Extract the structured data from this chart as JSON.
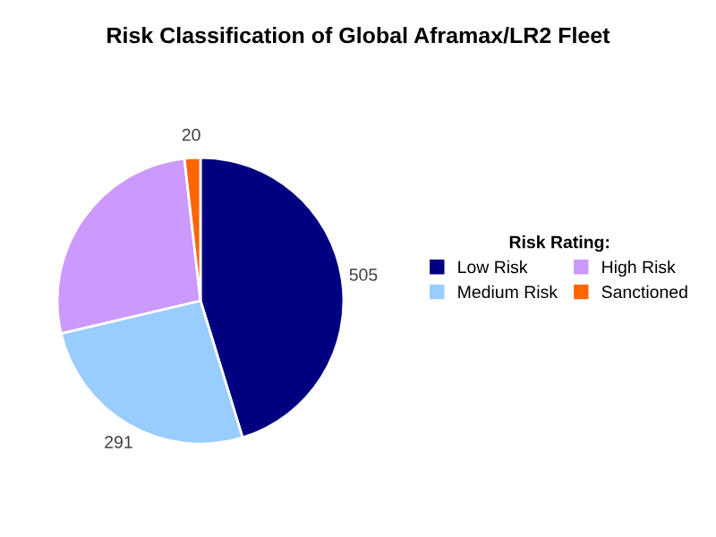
{
  "chart_data": {
    "type": "pie",
    "title": "Risk Classification of Global Aframax/LR2 Fleet",
    "legend_title": "Risk Rating:",
    "categories": [
      "Low Risk",
      "Medium Risk",
      "High Risk",
      "Sanctioned"
    ],
    "values": [
      505,
      291,
      300,
      20
    ],
    "value_labels": [
      "505",
      "291",
      null,
      "20"
    ],
    "colors": [
      "#000080",
      "#99ccff",
      "#cc99ff",
      "#ff6600"
    ],
    "legend": "right"
  }
}
